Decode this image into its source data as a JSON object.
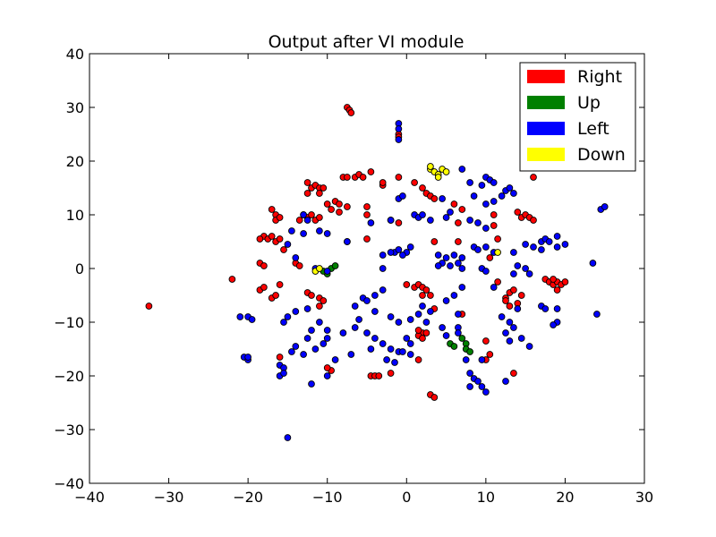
{
  "chart_data": {
    "type": "scatter",
    "title": "Output after VI module",
    "xlabel": "",
    "ylabel": "",
    "xlim": [
      -40,
      30
    ],
    "ylim": [
      -40,
      40
    ],
    "xticks": [
      -40,
      -30,
      -20,
      -10,
      0,
      10,
      20,
      30
    ],
    "yticks": [
      -40,
      -30,
      -20,
      -10,
      0,
      10,
      20,
      30,
      40
    ],
    "xtick_labels": [
      "−40",
      "−30",
      "−20",
      "−10",
      "0",
      "10",
      "20",
      "30"
    ],
    "ytick_labels": [
      "−40",
      "−30",
      "−20",
      "−10",
      "0",
      "10",
      "20",
      "30",
      "40"
    ],
    "grid": false,
    "legend_position": "top-right",
    "series": [
      {
        "name": "Right",
        "color": "#ff0000",
        "points": [
          [
            -7.5,
            30
          ],
          [
            -7.2,
            29.5
          ],
          [
            -7,
            29
          ],
          [
            -1,
            25
          ],
          [
            -1,
            24.5
          ],
          [
            -12.5,
            16
          ],
          [
            -12,
            15
          ],
          [
            -11.5,
            15.5
          ],
          [
            -11,
            15
          ],
          [
            -11,
            14
          ],
          [
            -10.5,
            15
          ],
          [
            -12.5,
            14
          ],
          [
            -8,
            17
          ],
          [
            -7.5,
            17
          ],
          [
            -6.5,
            17
          ],
          [
            -6,
            17.5
          ],
          [
            -5.5,
            17
          ],
          [
            -4.5,
            18
          ],
          [
            -3,
            15.5
          ],
          [
            -3,
            16
          ],
          [
            -1,
            17
          ],
          [
            1,
            16
          ],
          [
            2,
            15
          ],
          [
            2.5,
            14
          ],
          [
            3,
            13.5
          ],
          [
            3.5,
            13
          ],
          [
            -17,
            11
          ],
          [
            -16.5,
            10
          ],
          [
            -16.5,
            9
          ],
          [
            -16,
            9.5
          ],
          [
            -13.5,
            9
          ],
          [
            -13,
            10
          ],
          [
            -12.5,
            9.5
          ],
          [
            -12,
            10
          ],
          [
            -11.5,
            9
          ],
          [
            -11,
            9.5
          ],
          [
            -10,
            12
          ],
          [
            -9.5,
            11
          ],
          [
            -9,
            12.5
          ],
          [
            -8.5,
            10.5
          ],
          [
            -8.5,
            12
          ],
          [
            -7.5,
            11.5
          ],
          [
            -5,
            10
          ],
          [
            -5,
            11.5
          ],
          [
            -2,
            9
          ],
          [
            -1,
            8.5
          ],
          [
            -18,
            6
          ],
          [
            -17.5,
            5.5
          ],
          [
            -17,
            6
          ],
          [
            -16.5,
            5
          ],
          [
            -16,
            5.5
          ],
          [
            -18.5,
            5.5
          ],
          [
            -15.5,
            3.5
          ],
          [
            -7.5,
            5
          ],
          [
            -5,
            5.5
          ],
          [
            -18.5,
            1
          ],
          [
            -18,
            0.5
          ],
          [
            -14,
            1
          ],
          [
            -13.5,
            0.5
          ],
          [
            -22,
            -2
          ],
          [
            -18.5,
            -4
          ],
          [
            -18,
            -3.5
          ],
          [
            -17,
            -5.5
          ],
          [
            -16.5,
            -5
          ],
          [
            -16,
            -3
          ],
          [
            -12.5,
            -4.5
          ],
          [
            -12,
            -5
          ],
          [
            -11,
            -5.5
          ],
          [
            -10.5,
            -6
          ],
          [
            -11,
            -7
          ],
          [
            0,
            -3
          ],
          [
            1,
            -3.5
          ],
          [
            1.5,
            -3
          ],
          [
            2,
            -3.5
          ],
          [
            2.5,
            -4
          ],
          [
            2,
            -5
          ],
          [
            3,
            -5
          ],
          [
            3.5,
            -7.5
          ],
          [
            3.5,
            5
          ],
          [
            6,
            12
          ],
          [
            7,
            11
          ],
          [
            6.5,
            8.5
          ],
          [
            6.5,
            5
          ],
          [
            7,
            -8.5
          ],
          [
            11,
            8
          ],
          [
            11,
            10
          ],
          [
            11.5,
            5.5
          ],
          [
            11.5,
            -2.5
          ],
          [
            10.5,
            2
          ],
          [
            14,
            10.5
          ],
          [
            14.5,
            9.5
          ],
          [
            15,
            10
          ],
          [
            15.5,
            9.5
          ],
          [
            16,
            17
          ],
          [
            16,
            9
          ],
          [
            13,
            -4.5
          ],
          [
            12.5,
            -5.5
          ],
          [
            13.5,
            -4
          ],
          [
            14.5,
            -5
          ],
          [
            14,
            -6.5
          ],
          [
            13,
            -7
          ],
          [
            12.5,
            -6
          ],
          [
            17.5,
            -2
          ],
          [
            18,
            -2.5
          ],
          [
            18.5,
            -3
          ],
          [
            19,
            -2.5
          ],
          [
            19.5,
            -3
          ],
          [
            18.5,
            -2
          ],
          [
            20,
            -2.5
          ],
          [
            19,
            -4
          ],
          [
            10,
            -13.5
          ],
          [
            10.5,
            -16
          ],
          [
            10,
            -17
          ],
          [
            13.5,
            -19.5
          ],
          [
            2,
            -12
          ],
          [
            1.5,
            -12.5
          ],
          [
            2.5,
            -12
          ],
          [
            2,
            -13
          ],
          [
            1.5,
            -11.5
          ],
          [
            1.5,
            -17
          ],
          [
            3,
            -23.5
          ],
          [
            3.5,
            -24
          ],
          [
            -4.5,
            -20
          ],
          [
            -4,
            -20
          ],
          [
            -3.5,
            -20
          ],
          [
            -2,
            -19.5
          ],
          [
            -9.5,
            -19
          ],
          [
            -10,
            -18.5
          ],
          [
            -16,
            -16.5
          ],
          [
            -32.5,
            -7
          ]
        ]
      },
      {
        "name": "Up",
        "color": "#008000",
        "points": [
          [
            -10,
            -1
          ],
          [
            -9.5,
            0
          ],
          [
            -9,
            0.5
          ],
          [
            -10.5,
            -0.5
          ],
          [
            5.5,
            -14
          ],
          [
            6,
            -14.5
          ],
          [
            7,
            -13
          ],
          [
            7.5,
            -14
          ],
          [
            7.5,
            -15
          ],
          [
            8,
            -15.5
          ]
        ]
      },
      {
        "name": "Left",
        "color": "#0000ff",
        "points": [
          [
            -1,
            27
          ],
          [
            -1,
            26
          ],
          [
            -1,
            24
          ],
          [
            7,
            18.5
          ],
          [
            8,
            16
          ],
          [
            9.5,
            15.5
          ],
          [
            10,
            17
          ],
          [
            10.5,
            16.5
          ],
          [
            11,
            16
          ],
          [
            12,
            13.5
          ],
          [
            12.5,
            14.5
          ],
          [
            13,
            15
          ],
          [
            13.5,
            14
          ],
          [
            4.5,
            13
          ],
          [
            8.5,
            13.5
          ],
          [
            10,
            12
          ],
          [
            11,
            12.5
          ],
          [
            -1,
            13
          ],
          [
            -0.5,
            13.5
          ],
          [
            1,
            10
          ],
          [
            1.5,
            9.5
          ],
          [
            2,
            10
          ],
          [
            3,
            9
          ],
          [
            5,
            9.5
          ],
          [
            5.5,
            10.5
          ],
          [
            8,
            9
          ],
          [
            9,
            8.5
          ],
          [
            10,
            7.5
          ],
          [
            -2,
            9
          ],
          [
            -4.5,
            8.5
          ],
          [
            -13,
            10
          ],
          [
            -12.5,
            9
          ],
          [
            -14.5,
            7
          ],
          [
            -13,
            6.5
          ],
          [
            -11,
            7
          ],
          [
            -10,
            6.5
          ],
          [
            -7.5,
            5
          ],
          [
            -15,
            4.5
          ],
          [
            -14,
            2
          ],
          [
            -11.5,
            0
          ],
          [
            -10,
            -0.5
          ],
          [
            -1.5,
            3
          ],
          [
            -1,
            3.5
          ],
          [
            0,
            3
          ],
          [
            0.5,
            4
          ],
          [
            -0.5,
            2.5
          ],
          [
            -2,
            3
          ],
          [
            -3,
            2.5
          ],
          [
            -3,
            0
          ],
          [
            4,
            2.5
          ],
          [
            4.5,
            1
          ],
          [
            5,
            2
          ],
          [
            6,
            2.5
          ],
          [
            6.5,
            1
          ],
          [
            7,
            2
          ],
          [
            5.5,
            0.5
          ],
          [
            7,
            0
          ],
          [
            4,
            0.5
          ],
          [
            8.5,
            4
          ],
          [
            9,
            3.5
          ],
          [
            10,
            4
          ],
          [
            11,
            3
          ],
          [
            9.5,
            0
          ],
          [
            10,
            -0.5
          ],
          [
            13.5,
            3
          ],
          [
            15,
            4.5
          ],
          [
            16,
            4
          ],
          [
            17,
            5
          ],
          [
            17.5,
            5.5
          ],
          [
            18,
            5
          ],
          [
            19,
            6
          ],
          [
            20,
            4.5
          ],
          [
            19,
            4
          ],
          [
            17,
            3.5
          ],
          [
            24.5,
            11
          ],
          [
            25,
            11.5
          ],
          [
            23.5,
            1
          ],
          [
            24,
            -8.5
          ],
          [
            15.5,
            -1
          ],
          [
            15,
            0
          ],
          [
            14,
            0.5
          ],
          [
            13.5,
            -1
          ],
          [
            11,
            -3.5
          ],
          [
            7,
            -3.5
          ],
          [
            6,
            -5
          ],
          [
            5,
            -6
          ],
          [
            6.5,
            -8.5
          ],
          [
            3,
            -8
          ],
          [
            17,
            -7
          ],
          [
            17.5,
            -7.5
          ],
          [
            19,
            -7.5
          ],
          [
            19,
            -10
          ],
          [
            18.5,
            -10.5
          ],
          [
            14,
            -7.5
          ],
          [
            12,
            -9
          ],
          [
            13,
            -10
          ],
          [
            13.5,
            -11
          ],
          [
            12.5,
            -12
          ],
          [
            14.5,
            -13
          ],
          [
            13,
            -13.5
          ],
          [
            15.5,
            -14.5
          ],
          [
            -20,
            -9
          ],
          [
            -21,
            -9
          ],
          [
            -19.5,
            -9.5
          ],
          [
            -20.5,
            -16.5
          ],
          [
            -20,
            -17
          ],
          [
            -20,
            -16.5
          ],
          [
            -15,
            -9
          ],
          [
            -15.5,
            -10
          ],
          [
            -14,
            -8
          ],
          [
            -12.5,
            -7.5
          ],
          [
            -11,
            -10
          ],
          [
            -10,
            -11.5
          ],
          [
            -10,
            -13
          ],
          [
            -16,
            -18
          ],
          [
            -15.5,
            -18.5
          ],
          [
            -16,
            -20
          ],
          [
            -15.5,
            -19.5
          ],
          [
            -14.5,
            -15.5
          ],
          [
            -14,
            -14.5
          ],
          [
            -13,
            -16
          ],
          [
            -12.5,
            -13
          ],
          [
            -12,
            -11.5
          ],
          [
            -11.5,
            -15
          ],
          [
            -10.5,
            -14
          ],
          [
            -9,
            -17
          ],
          [
            -10,
            -20
          ],
          [
            -12,
            -21.5
          ],
          [
            -8,
            -12
          ],
          [
            -7,
            -16
          ],
          [
            -5.5,
            -5.5
          ],
          [
            -5,
            -6
          ],
          [
            -4,
            -5
          ],
          [
            -3,
            -4
          ],
          [
            -6.5,
            -7
          ],
          [
            -4,
            -8
          ],
          [
            -6,
            -9.5
          ],
          [
            -6.5,
            -11
          ],
          [
            -5,
            -12
          ],
          [
            -4,
            -13
          ],
          [
            -3,
            -14
          ],
          [
            -2,
            -15
          ],
          [
            -1,
            -15.5
          ],
          [
            -2.5,
            -17
          ],
          [
            -1.5,
            -17.5
          ],
          [
            -4.5,
            -15
          ],
          [
            -2,
            -9
          ],
          [
            -1,
            -10
          ],
          [
            0,
            -13
          ],
          [
            0.5,
            -14
          ],
          [
            -0.5,
            -15.5
          ],
          [
            0.5,
            -16
          ],
          [
            2,
            -7
          ],
          [
            1.5,
            -8.5
          ],
          [
            0.5,
            -9.5
          ],
          [
            2.5,
            -10
          ],
          [
            4.5,
            -11
          ],
          [
            5,
            -12.5
          ],
          [
            6.5,
            -11
          ],
          [
            6.5,
            -12
          ],
          [
            7.5,
            -17
          ],
          [
            8,
            -19.5
          ],
          [
            8.5,
            -20.5
          ],
          [
            9,
            -21
          ],
          [
            9.5,
            -22
          ],
          [
            10,
            -23
          ],
          [
            8,
            -22
          ],
          [
            9.5,
            -17
          ],
          [
            12.5,
            -21
          ],
          [
            -15,
            -31.5
          ]
        ]
      },
      {
        "name": "Down",
        "color": "#ffff00",
        "points": [
          [
            3,
            18.5
          ],
          [
            3.5,
            18
          ],
          [
            4,
            17.5
          ],
          [
            4.5,
            18.5
          ],
          [
            5,
            18
          ],
          [
            3,
            19
          ],
          [
            4,
            17
          ],
          [
            -11.5,
            -0.5
          ],
          [
            -11,
            0
          ],
          [
            11.5,
            3
          ]
        ]
      }
    ]
  }
}
